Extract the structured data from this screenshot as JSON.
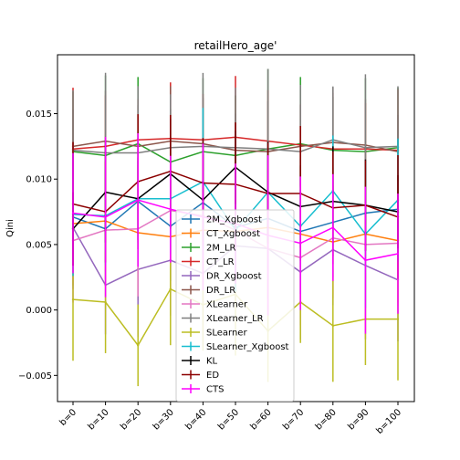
{
  "chart_data": {
    "type": "line",
    "title": "retailHero_age'",
    "xlabel": "",
    "ylabel": "Qini",
    "categories": [
      "b=0",
      "b=10",
      "b=20",
      "b=30",
      "b=40",
      "b=50",
      "b=60",
      "b=70",
      "b=80",
      "b=90",
      "b=100"
    ],
    "ylim": [
      -0.007,
      0.0195
    ],
    "yticks": [
      -0.005,
      0.0,
      0.005,
      0.01,
      0.015
    ],
    "ytick_labels": [
      "−0.005",
      "0.000",
      "0.005",
      "0.010",
      "0.015"
    ],
    "grid": false,
    "legend_position": "center-bottom",
    "series": [
      {
        "name": "2M_Xgboost",
        "color": "#1f77b4",
        "values": [
          0.0071,
          0.0062,
          0.0083,
          0.0064,
          0.0082,
          0.0063,
          0.007,
          0.006,
          0.0067,
          0.0074,
          0.0077
        ]
      },
      {
        "name": "CT_Xgboost",
        "color": "#ff7f0e",
        "values": [
          0.0066,
          0.0068,
          0.0059,
          0.0056,
          0.0061,
          0.006,
          0.0063,
          0.0058,
          0.0052,
          0.0058,
          0.0053
        ]
      },
      {
        "name": "2M_LR",
        "color": "#2ca02c",
        "values": [
          0.0121,
          0.0118,
          0.0127,
          0.0113,
          0.0121,
          0.0118,
          0.0123,
          0.0127,
          0.0122,
          0.0121,
          0.0124
        ]
      },
      {
        "name": "CT_LR",
        "color": "#d62728",
        "values": [
          0.0123,
          0.0125,
          0.013,
          0.0131,
          0.013,
          0.0132,
          0.0129,
          0.0126,
          0.0123,
          0.0123,
          0.0122
        ]
      },
      {
        "name": "DR_Xgboost",
        "color": "#9467bd",
        "values": [
          0.0063,
          0.0019,
          0.0031,
          0.0038,
          0.0028,
          0.0049,
          0.0047,
          0.0029,
          0.0046,
          0.0034,
          0.0023
        ]
      },
      {
        "name": "DR_LR",
        "color": "#8c564b",
        "values": [
          0.0125,
          0.0129,
          0.0125,
          0.0129,
          0.0127,
          0.0122,
          0.0121,
          0.0125,
          0.0128,
          0.0126,
          0.0121
        ]
      },
      {
        "name": "XLearner",
        "color": "#e377c2",
        "values": [
          0.0053,
          0.0061,
          0.0062,
          0.0076,
          0.0072,
          0.0061,
          0.0047,
          0.004,
          0.0055,
          0.005,
          0.0051
        ]
      },
      {
        "name": "XLearner_LR",
        "color": "#7f7f7f",
        "values": [
          0.0122,
          0.012,
          0.012,
          0.0124,
          0.0125,
          0.0124,
          0.0123,
          0.0121,
          0.013,
          0.0124,
          0.0125
        ]
      },
      {
        "name": "SLearner",
        "color": "#bcbd22",
        "values": [
          0.0008,
          0.0006,
          -0.0027,
          0.0016,
          0.0004,
          0.0012,
          -0.0016,
          0.0006,
          -0.0012,
          -0.0007,
          -0.0007
        ]
      },
      {
        "name": "SLearner_Xgboost",
        "color": "#17becf",
        "values": [
          0.0073,
          0.0072,
          0.0085,
          0.0085,
          0.0098,
          0.0061,
          0.009,
          0.0064,
          0.0091,
          0.0058,
          0.0084
        ]
      },
      {
        "name": "KL",
        "color": "#000000",
        "values": [
          0.0062,
          0.009,
          0.0085,
          0.0104,
          0.0084,
          0.0109,
          0.009,
          0.0079,
          0.0083,
          0.008,
          0.0075
        ]
      },
      {
        "name": "ED",
        "color": "#8b0000",
        "values": [
          0.0081,
          0.0075,
          0.0098,
          0.0106,
          0.0097,
          0.0096,
          0.0089,
          0.0089,
          0.0078,
          0.008,
          0.0071
        ]
      },
      {
        "name": "CTS",
        "color": "#ff00ff",
        "values": [
          0.0074,
          0.0071,
          0.0084,
          0.0077,
          0.0071,
          0.0066,
          0.0057,
          0.0051,
          0.0063,
          0.0038,
          0.0043
        ]
      }
    ]
  }
}
